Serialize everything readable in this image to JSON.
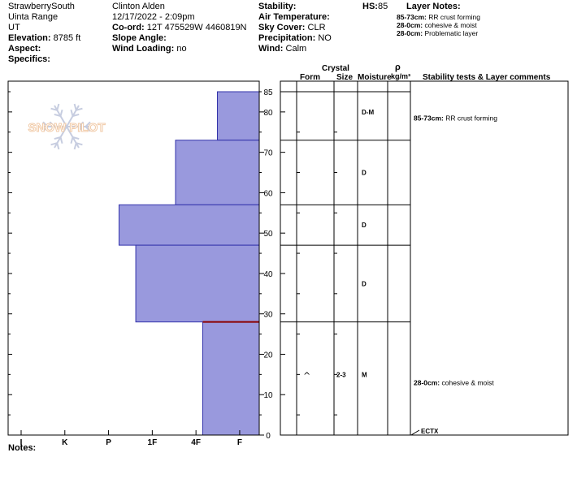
{
  "header": {
    "col1": {
      "location": "StrawberrySouth",
      "range": "Uinta Range",
      "state": "UT",
      "elevation_label": "Elevation:",
      "elevation_value": "8785 ft",
      "aspect_label": "Aspect:",
      "specifics_label": "Specifics:"
    },
    "col2": {
      "observer": "Clinton Alden",
      "datetime": "12/17/2022 - 2:09pm",
      "coord_label": "Co-ord:",
      "coord_value": "12T 475529W 4460819N",
      "slope_label": "Slope Angle:",
      "wind_loading_label": "Wind Loading:",
      "wind_loading_value": "no"
    },
    "col3": {
      "stability_label": "Stability:",
      "air_temp_label": "Air Temperature:",
      "sky_label": "Sky Cover:",
      "sky_value": "CLR",
      "precip_label": "Precipitation:",
      "precip_value": "NO",
      "wind_label": "Wind:",
      "wind_value": "Calm"
    },
    "hs_label": "HS:",
    "hs_value": "85",
    "layer_notes": {
      "title": "Layer Notes:",
      "items": [
        {
          "range": "85-73cm:",
          "text": "RR crust forming"
        },
        {
          "range": "28-0cm:",
          "text": "cohesive & moist"
        },
        {
          "range": "28-0cm:",
          "text": "Problematic layer"
        }
      ]
    }
  },
  "watermark": "SNOW PILOT",
  "table_headers": {
    "crystal": "Crystal",
    "form": "Form",
    "size": "Size",
    "moisture": "Moisture",
    "rho": "ρ",
    "density_unit": "kg/m³",
    "comments": "Stability tests & Layer comments"
  },
  "notes_label": "Notes:",
  "test_label": "ECTX",
  "comments": [
    {
      "depth": 85,
      "range": "85-73cm:",
      "text": "RR crust forming"
    },
    {
      "depth": 28,
      "range": "28-0cm:",
      "text": "cohesive & moist"
    }
  ],
  "chart_data": {
    "type": "bar",
    "orientation": "horizontal-stepped",
    "title": "",
    "xlabel": "",
    "ylabel": "",
    "ylim": [
      0,
      85
    ],
    "yticks": [
      0,
      10,
      20,
      30,
      40,
      50,
      60,
      70,
      80,
      85
    ],
    "hardness_scale": [
      "I",
      "K",
      "P",
      "1F",
      "4F",
      "F"
    ],
    "hardness_levels": 6,
    "layers": [
      {
        "top": 85,
        "bottom": 73,
        "hardness": "F",
        "level": 1.0,
        "form": "",
        "size": "",
        "moisture": "D-M"
      },
      {
        "top": 73,
        "bottom": 57,
        "hardness": "4F",
        "level": 2.0,
        "form": "",
        "size": "",
        "moisture": "D"
      },
      {
        "top": 57,
        "bottom": 47,
        "hardness": "1F-",
        "level": 3.35,
        "form": "",
        "size": "",
        "moisture": "D"
      },
      {
        "top": 47,
        "bottom": 28,
        "hardness": "1F",
        "level": 2.95,
        "form": "",
        "size": "",
        "moisture": "D"
      },
      {
        "top": 28,
        "bottom": 0,
        "hardness": "4F+",
        "level": 1.35,
        "form": "^",
        "size": "2-3",
        "moisture": "M"
      }
    ],
    "colors": {
      "bar_fill": "#9999dd",
      "bar_edge": "#3333aa",
      "problem_line": "#8b0000"
    }
  }
}
